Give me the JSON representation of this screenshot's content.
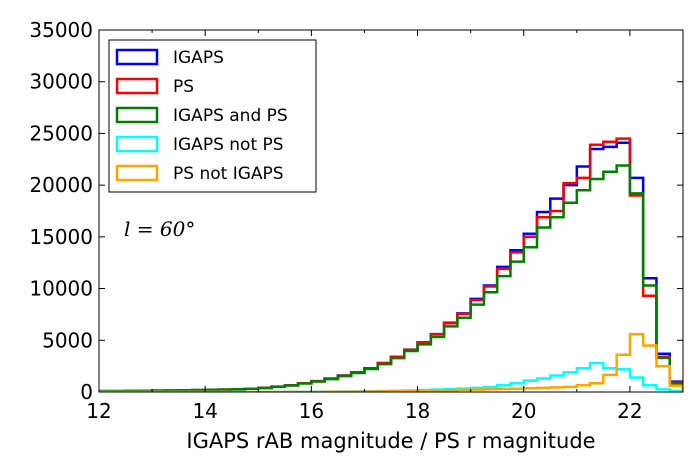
{
  "chart_data": {
    "type": "histogram",
    "title": "",
    "xlabel": "IGAPS rAB magnitude / PS r magnitude",
    "ylabel": "",
    "xlim": [
      12,
      23
    ],
    "ylim": [
      0,
      35000
    ],
    "xticks": [
      12,
      14,
      16,
      18,
      20,
      22
    ],
    "yticks": [
      0,
      5000,
      10000,
      15000,
      20000,
      25000,
      30000,
      35000
    ],
    "grid": false,
    "legend_position": "top-left",
    "annotation": "l = 60°",
    "bin_edges": [
      12.0,
      12.25,
      12.5,
      12.75,
      13.0,
      13.25,
      13.5,
      13.75,
      14.0,
      14.25,
      14.5,
      14.75,
      15.0,
      15.25,
      15.5,
      15.75,
      16.0,
      16.25,
      16.5,
      16.75,
      17.0,
      17.25,
      17.5,
      17.75,
      18.0,
      18.25,
      18.5,
      18.75,
      19.0,
      19.25,
      19.5,
      19.75,
      20.0,
      20.25,
      20.5,
      20.75,
      21.0,
      21.25,
      21.5,
      21.75,
      22.0,
      22.25,
      22.5,
      22.75,
      23.0
    ],
    "series": [
      {
        "name": "IGAPS",
        "color": "#0000ff",
        "values": [
          80,
          90,
          100,
          110,
          130,
          140,
          160,
          180,
          200,
          230,
          260,
          320,
          400,
          520,
          650,
          850,
          1050,
          1300,
          1600,
          1900,
          2300,
          2800,
          3400,
          4100,
          4800,
          5600,
          6700,
          7600,
          9000,
          10300,
          12100,
          13700,
          15300,
          17400,
          18700,
          20000,
          21800,
          23500,
          23700,
          24100,
          20700,
          11000,
          3700,
          1000
        ]
      },
      {
        "name": "PS",
        "color": "#ff0000",
        "values": [
          80,
          90,
          100,
          110,
          130,
          140,
          160,
          180,
          200,
          230,
          260,
          320,
          400,
          510,
          640,
          840,
          1030,
          1280,
          1580,
          1880,
          2280,
          2780,
          3380,
          4080,
          4780,
          5580,
          6650,
          7550,
          8900,
          10200,
          11900,
          13500,
          15000,
          16900,
          17500,
          20200,
          20700,
          23900,
          24200,
          24500,
          19000,
          9300,
          3400,
          900
        ]
      },
      {
        "name": "IGAPS and PS",
        "color": "#008000",
        "values": [
          80,
          90,
          100,
          110,
          130,
          140,
          160,
          180,
          200,
          230,
          260,
          320,
          390,
          500,
          630,
          820,
          1010,
          1250,
          1540,
          1840,
          2220,
          2700,
          3280,
          3960,
          4600,
          5320,
          6350,
          7180,
          8450,
          9650,
          11200,
          12600,
          14000,
          15900,
          16900,
          18300,
          19500,
          20600,
          21300,
          21900,
          19200,
          10300,
          3300,
          800
        ]
      },
      {
        "name": "IGAPS not PS",
        "color": "#00ffff",
        "values": [
          0,
          0,
          0,
          0,
          0,
          0,
          0,
          0,
          0,
          0,
          0,
          0,
          0,
          0,
          10,
          20,
          30,
          40,
          50,
          60,
          80,
          100,
          120,
          150,
          180,
          230,
          280,
          330,
          400,
          480,
          650,
          850,
          1100,
          1300,
          1600,
          1900,
          2300,
          2800,
          2300,
          2200,
          1400,
          650,
          250,
          80
        ]
      },
      {
        "name": "PS not IGAPS",
        "color": "#ffa500",
        "values": [
          0,
          0,
          0,
          0,
          0,
          0,
          0,
          0,
          0,
          0,
          0,
          0,
          0,
          0,
          0,
          0,
          0,
          20,
          30,
          40,
          50,
          60,
          80,
          100,
          120,
          140,
          170,
          200,
          230,
          260,
          290,
          320,
          360,
          400,
          450,
          500,
          650,
          850,
          1650,
          3600,
          5600,
          4500,
          2500,
          600
        ]
      }
    ]
  }
}
